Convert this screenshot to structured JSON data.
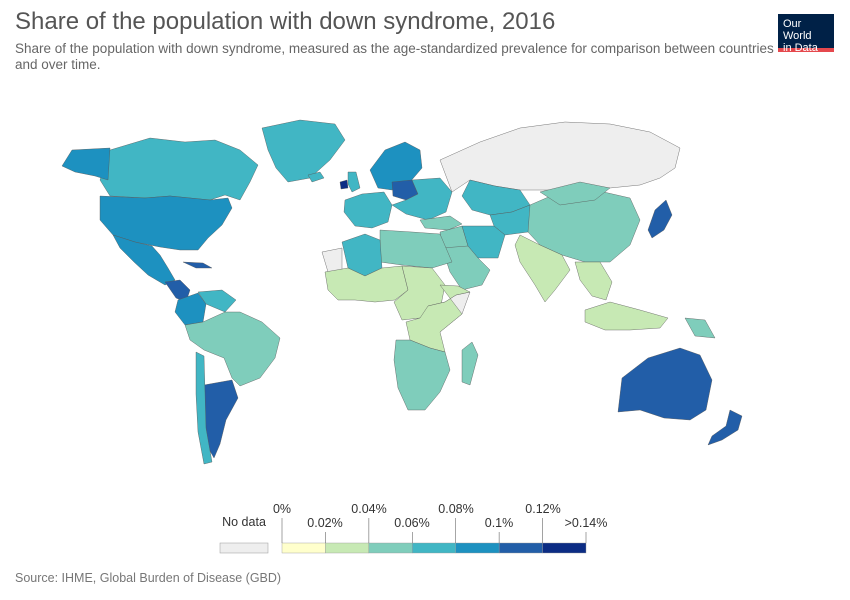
{
  "header": {
    "title": "Share of the population with down syndrome, 2016",
    "subtitle": "Share of the population with down syndrome, measured as the age-standardized prevalence for comparison between countries and over time."
  },
  "logo": {
    "line1": "Our World",
    "line2": "in Data",
    "bg_color": "#002147",
    "accent_color": "#e5484d"
  },
  "legend": {
    "no_data_label": "No data",
    "no_data_color": "#eeeeee",
    "tick_labels_upper": [
      "0%",
      "0.04%",
      "0.08%",
      "0.12%"
    ],
    "tick_labels_lower": [
      "0.02%",
      "0.06%",
      "0.1%",
      ">0.14%"
    ],
    "bins": [
      {
        "from": 0,
        "to": 0.02,
        "color": "#ffffcc"
      },
      {
        "from": 0.02,
        "to": 0.04,
        "color": "#c7e9b4"
      },
      {
        "from": 0.04,
        "to": 0.06,
        "color": "#7fcdbb"
      },
      {
        "from": 0.06,
        "to": 0.08,
        "color": "#41b6c4"
      },
      {
        "from": 0.08,
        "to": 0.1,
        "color": "#1d91c0"
      },
      {
        "from": 0.1,
        "to": 0.12,
        "color": "#225ea8"
      },
      {
        "from": 0.12,
        "to": 0.14,
        "color": "#0c2c84"
      }
    ]
  },
  "footer": {
    "source": "Source: IHME, Global Burden of Disease (GBD)"
  },
  "map_regions": [
    {
      "name": "Greenland",
      "color": "#41b6c4"
    },
    {
      "name": "Canada",
      "color": "#41b6c4"
    },
    {
      "name": "Alaska",
      "color": "#1d91c0"
    },
    {
      "name": "United States",
      "color": "#1d91c0"
    },
    {
      "name": "Mexico",
      "color": "#1d91c0"
    },
    {
      "name": "Central America",
      "color": "#225ea8"
    },
    {
      "name": "Cuba",
      "color": "#225ea8"
    },
    {
      "name": "Colombia",
      "color": "#1d91c0"
    },
    {
      "name": "Venezuela",
      "color": "#41b6c4"
    },
    {
      "name": "South America",
      "color": "#7fcdbb"
    },
    {
      "name": "Argentina",
      "color": "#225ea8"
    },
    {
      "name": "Chile",
      "color": "#41b6c4"
    },
    {
      "name": "Iceland",
      "color": "#41b6c4"
    },
    {
      "name": "Scandinavia",
      "color": "#1d91c0"
    },
    {
      "name": "Ireland",
      "color": "#0c2c84"
    },
    {
      "name": "United Kingdom",
      "color": "#41b6c4"
    },
    {
      "name": "Western Europe",
      "color": "#41b6c4"
    },
    {
      "name": "Poland",
      "color": "#225ea8"
    },
    {
      "name": "Eastern Europe",
      "color": "#41b6c4"
    },
    {
      "name": "Russia",
      "color": "#eeeeee"
    },
    {
      "name": "Kazakhstan",
      "color": "#41b6c4"
    },
    {
      "name": "Central Asia",
      "color": "#41b6c4"
    },
    {
      "name": "Turkey",
      "color": "#7fcdbb"
    },
    {
      "name": "Middle East",
      "color": "#7fcdbb"
    },
    {
      "name": "Iran",
      "color": "#41b6c4"
    },
    {
      "name": "Arabian Peninsula",
      "color": "#7fcdbb"
    },
    {
      "name": "China",
      "color": "#7fcdbb"
    },
    {
      "name": "Mongolia",
      "color": "#7fcdbb"
    },
    {
      "name": "India",
      "color": "#c7e9b4"
    },
    {
      "name": "Southeast Asia",
      "color": "#c7e9b4"
    },
    {
      "name": "Japan",
      "color": "#225ea8"
    },
    {
      "name": "North Africa",
      "color": "#7fcdbb"
    },
    {
      "name": "Algeria",
      "color": "#41b6c4"
    },
    {
      "name": "Western Sahara",
      "color": "#eeeeee"
    },
    {
      "name": "West Africa",
      "color": "#c7e9b4"
    },
    {
      "name": "Central Africa",
      "color": "#c7e9b4"
    },
    {
      "name": "Somalia",
      "color": "#eeeeee"
    },
    {
      "name": "East Africa",
      "color": "#c7e9b4"
    },
    {
      "name": "Southern Africa",
      "color": "#7fcdbb"
    },
    {
      "name": "Madagascar",
      "color": "#7fcdbb"
    },
    {
      "name": "Indonesia",
      "color": "#c7e9b4"
    },
    {
      "name": "Papua New Guinea",
      "color": "#7fcdbb"
    },
    {
      "name": "Australia",
      "color": "#225ea8"
    },
    {
      "name": "New Zealand",
      "color": "#225ea8"
    }
  ]
}
